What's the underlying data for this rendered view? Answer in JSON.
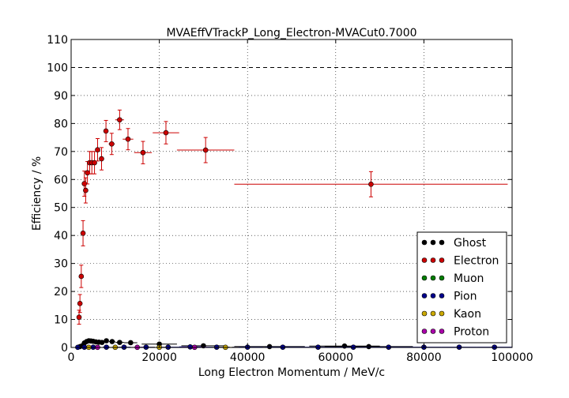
{
  "chart_data": {
    "type": "scatter",
    "title": "MVAEffVTrackP_Long_Electron-MVACut0.7000",
    "xlabel": "Long Electron Momentum / MeV/c",
    "ylabel": "Efficiency / %",
    "xlim": [
      0,
      100000
    ],
    "ylim": [
      0,
      110
    ],
    "xticks": [
      0,
      20000,
      40000,
      60000,
      80000,
      100000
    ],
    "xtick_labels": [
      "0",
      "20000",
      "40000",
      "60000",
      "80000",
      "100000"
    ],
    "yticks": [
      0,
      10,
      20,
      30,
      40,
      50,
      60,
      70,
      80,
      90,
      100,
      110
    ],
    "ytick_labels": [
      "0",
      "10",
      "20",
      "30",
      "40",
      "50",
      "60",
      "70",
      "80",
      "90",
      "100",
      "110"
    ],
    "grid": true,
    "reference_line": 100,
    "legend_position": "lower-right",
    "series": [
      {
        "name": "Ghost",
        "color": "#000000",
        "points": [
          {
            "x": 2000,
            "y": 0.3,
            "xerr": 400,
            "yerr": 0.2
          },
          {
            "x": 2500,
            "y": 0.6,
            "xerr": 250,
            "yerr": 0.3
          },
          {
            "x": 3000,
            "y": 1.6,
            "xerr": 250,
            "yerr": 0.4
          },
          {
            "x": 3500,
            "y": 2.1,
            "xerr": 250,
            "yerr": 0.4
          },
          {
            "x": 4000,
            "y": 2.4,
            "xerr": 250,
            "yerr": 0.4
          },
          {
            "x": 4500,
            "y": 2.3,
            "xerr": 250,
            "yerr": 0.4
          },
          {
            "x": 5000,
            "y": 2.2,
            "xerr": 250,
            "yerr": 0.4
          },
          {
            "x": 5600,
            "y": 2.0,
            "xerr": 300,
            "yerr": 0.4
          },
          {
            "x": 6300,
            "y": 1.9,
            "xerr": 350,
            "yerr": 0.4
          },
          {
            "x": 7000,
            "y": 1.8,
            "xerr": 350,
            "yerr": 0.4
          },
          {
            "x": 8000,
            "y": 2.4,
            "xerr": 500,
            "yerr": 0.5
          },
          {
            "x": 9300,
            "y": 2.1,
            "xerr": 700,
            "yerr": 0.5
          },
          {
            "x": 11000,
            "y": 1.8,
            "xerr": 1000,
            "yerr": 0.5
          },
          {
            "x": 13500,
            "y": 1.7,
            "xerr": 1500,
            "yerr": 0.5
          },
          {
            "x": 20000,
            "y": 1.2,
            "xerr": 4000,
            "yerr": 0.4
          },
          {
            "x": 30000,
            "y": 0.6,
            "xerr": 5000,
            "yerr": 0.3
          },
          {
            "x": 45000,
            "y": 0.3,
            "xerr": 8000,
            "yerr": 0.2
          },
          {
            "x": 62000,
            "y": 0.5,
            "xerr": 8000,
            "yerr": 0.3
          },
          {
            "x": 67500,
            "y": 0.3,
            "xerr": 10000,
            "yerr": 0.2
          }
        ]
      },
      {
        "name": "Electron",
        "color": "#cc0000",
        "points": [
          {
            "x": 1800,
            "y": 10.8,
            "xerr": 150,
            "yerr": 2.5
          },
          {
            "x": 2000,
            "y": 15.7,
            "xerr": 150,
            "yerr": 3.2
          },
          {
            "x": 2300,
            "y": 25.4,
            "xerr": 150,
            "yerr": 4.0
          },
          {
            "x": 2700,
            "y": 40.8,
            "xerr": 150,
            "yerr": 4.5
          },
          {
            "x": 3000,
            "y": 58.5,
            "xerr": 150,
            "yerr": 4.5
          },
          {
            "x": 3300,
            "y": 56.1,
            "xerr": 150,
            "yerr": 4.5
          },
          {
            "x": 3700,
            "y": 62.4,
            "xerr": 200,
            "yerr": 4.0
          },
          {
            "x": 4200,
            "y": 66.0,
            "xerr": 250,
            "yerr": 4.0
          },
          {
            "x": 4700,
            "y": 66.0,
            "xerr": 250,
            "yerr": 4.0
          },
          {
            "x": 5300,
            "y": 66.0,
            "xerr": 300,
            "yerr": 4.0
          },
          {
            "x": 6000,
            "y": 70.6,
            "xerr": 400,
            "yerr": 4.0
          },
          {
            "x": 6900,
            "y": 67.4,
            "xerr": 450,
            "yerr": 4.0
          },
          {
            "x": 7900,
            "y": 77.3,
            "xerr": 500,
            "yerr": 3.8
          },
          {
            "x": 9200,
            "y": 72.7,
            "xerr": 700,
            "yerr": 3.8
          },
          {
            "x": 11000,
            "y": 81.3,
            "xerr": 1000,
            "yerr": 3.5
          },
          {
            "x": 12900,
            "y": 74.4,
            "xerr": 1200,
            "yerr": 3.8
          },
          {
            "x": 16300,
            "y": 69.6,
            "xerr": 2000,
            "yerr": 4.0
          },
          {
            "x": 21500,
            "y": 76.7,
            "xerr": 3000,
            "yerr": 4.0
          },
          {
            "x": 30500,
            "y": 70.5,
            "xerr": 6500,
            "yerr": 4.5
          },
          {
            "x": 68000,
            "y": 58.3,
            "xerr": 31000,
            "yerr": 4.5
          }
        ]
      },
      {
        "name": "Muon",
        "color": "#007f00",
        "points": []
      },
      {
        "name": "Pion",
        "color": "#00008b",
        "points": [
          {
            "x": 1500,
            "y": 0.05,
            "xerr": 300,
            "yerr": 0.05
          },
          {
            "x": 3000,
            "y": 0.1,
            "xerr": 400,
            "yerr": 0.05
          },
          {
            "x": 5000,
            "y": 0.1,
            "xerr": 500,
            "yerr": 0.05
          },
          {
            "x": 8000,
            "y": 0.1,
            "xerr": 800,
            "yerr": 0.05
          },
          {
            "x": 12000,
            "y": 0.1,
            "xerr": 1500,
            "yerr": 0.05
          },
          {
            "x": 17000,
            "y": 0.1,
            "xerr": 2000,
            "yerr": 0.05
          },
          {
            "x": 22000,
            "y": 0.1,
            "xerr": 2500,
            "yerr": 0.05
          },
          {
            "x": 27000,
            "y": 0.2,
            "xerr": 2500,
            "yerr": 0.1
          },
          {
            "x": 33000,
            "y": 0.1,
            "xerr": 3000,
            "yerr": 0.05
          },
          {
            "x": 40000,
            "y": 0.1,
            "xerr": 3500,
            "yerr": 0.05
          },
          {
            "x": 48000,
            "y": 0.1,
            "xerr": 4000,
            "yerr": 0.05
          },
          {
            "x": 56000,
            "y": 0.1,
            "xerr": 4000,
            "yerr": 0.05
          },
          {
            "x": 64000,
            "y": 0.1,
            "xerr": 4000,
            "yerr": 0.05
          },
          {
            "x": 72000,
            "y": 0.1,
            "xerr": 4000,
            "yerr": 0.05
          },
          {
            "x": 80000,
            "y": 0.1,
            "xerr": 4000,
            "yerr": 0.05
          },
          {
            "x": 88000,
            "y": 0.1,
            "xerr": 4000,
            "yerr": 0.05
          },
          {
            "x": 96000,
            "y": 0.1,
            "xerr": 4000,
            "yerr": 0.05
          }
        ]
      },
      {
        "name": "Kaon",
        "color": "#ccaa00",
        "points": [
          {
            "x": 4000,
            "y": 0.05,
            "xerr": 500,
            "yerr": 0.05
          },
          {
            "x": 10000,
            "y": 0.05,
            "xerr": 1000,
            "yerr": 0.05
          },
          {
            "x": 20000,
            "y": 0.05,
            "xerr": 2000,
            "yerr": 0.05
          },
          {
            "x": 35000,
            "y": 0.05,
            "xerr": 3000,
            "yerr": 0.05
          }
        ]
      },
      {
        "name": "Proton",
        "color": "#aa00aa",
        "points": [
          {
            "x": 6000,
            "y": 0.05,
            "xerr": 800,
            "yerr": 0.05
          },
          {
            "x": 15000,
            "y": 0.05,
            "xerr": 1500,
            "yerr": 0.05
          },
          {
            "x": 28000,
            "y": 0.05,
            "xerr": 3000,
            "yerr": 0.05
          }
        ]
      }
    ]
  }
}
